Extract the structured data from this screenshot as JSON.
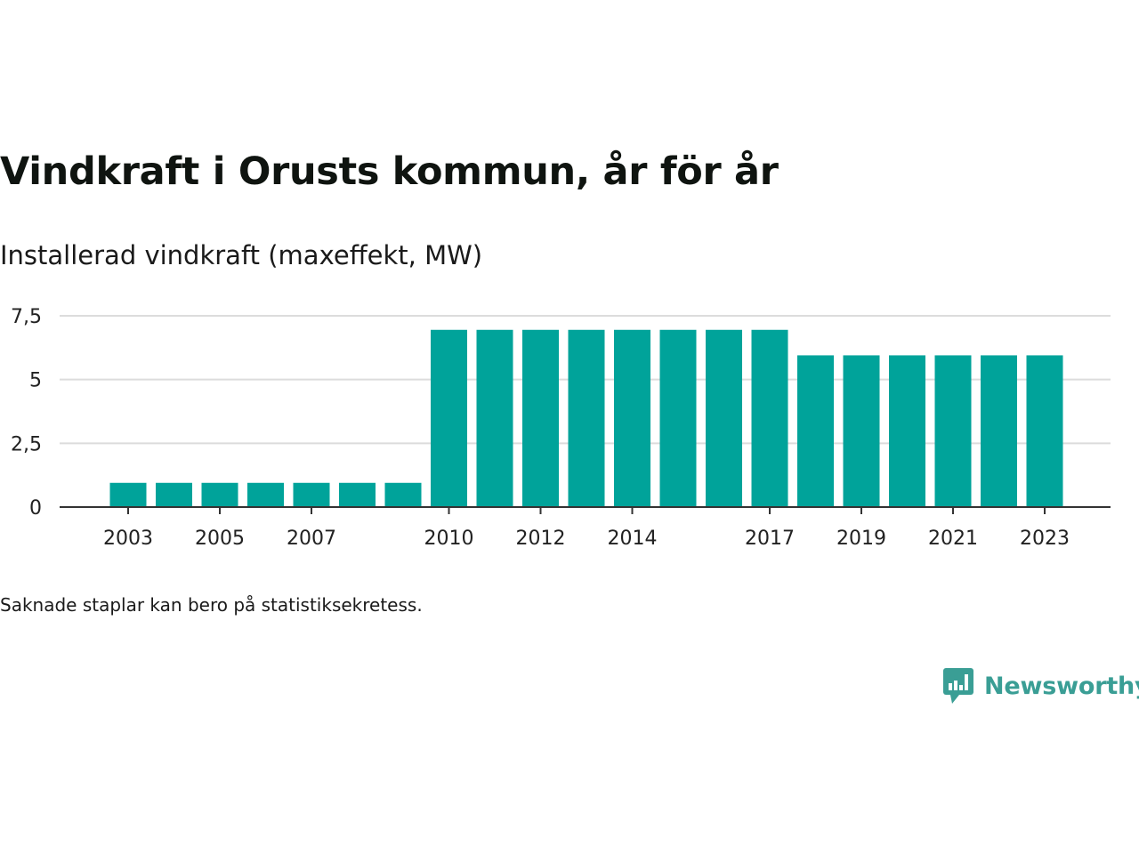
{
  "chart_data": {
    "type": "bar",
    "title": "Vindkraft i Orusts kommun, år för år",
    "subtitle": "Installerad vindkraft (maxeffekt, MW)",
    "categories": [
      "2003",
      "2004",
      "2005",
      "2006",
      "2007",
      "2008",
      "2009",
      "2010",
      "2011",
      "2012",
      "2013",
      "2014",
      "2015",
      "2016",
      "2017",
      "2018",
      "2019",
      "2020",
      "2021",
      "2022",
      "2023"
    ],
    "values": [
      0.95,
      0.95,
      0.95,
      0.95,
      0.95,
      0.95,
      0.95,
      6.95,
      6.95,
      6.95,
      6.95,
      6.95,
      6.95,
      6.95,
      6.95,
      5.95,
      5.95,
      5.95,
      5.95,
      5.95,
      5.95
    ],
    "x_tick_labels": [
      "2003",
      "2005",
      "2007",
      "2010",
      "2012",
      "2014",
      "2017",
      "2019",
      "2021",
      "2023"
    ],
    "y_ticks": [
      0,
      2.5,
      5,
      7.5
    ],
    "y_tick_labels": [
      "0",
      "2,5",
      "5",
      "7,5"
    ],
    "ylim": [
      0,
      7.5
    ],
    "xlabel": "",
    "ylabel": "",
    "grid": true,
    "bar_color": "#00a39a"
  },
  "note": "Saknade staplar kan bero på statistiksekretess.",
  "brand": {
    "name": "Newsworthy",
    "icon": "newsworthy-logo-icon",
    "color": "#3a9e95"
  }
}
